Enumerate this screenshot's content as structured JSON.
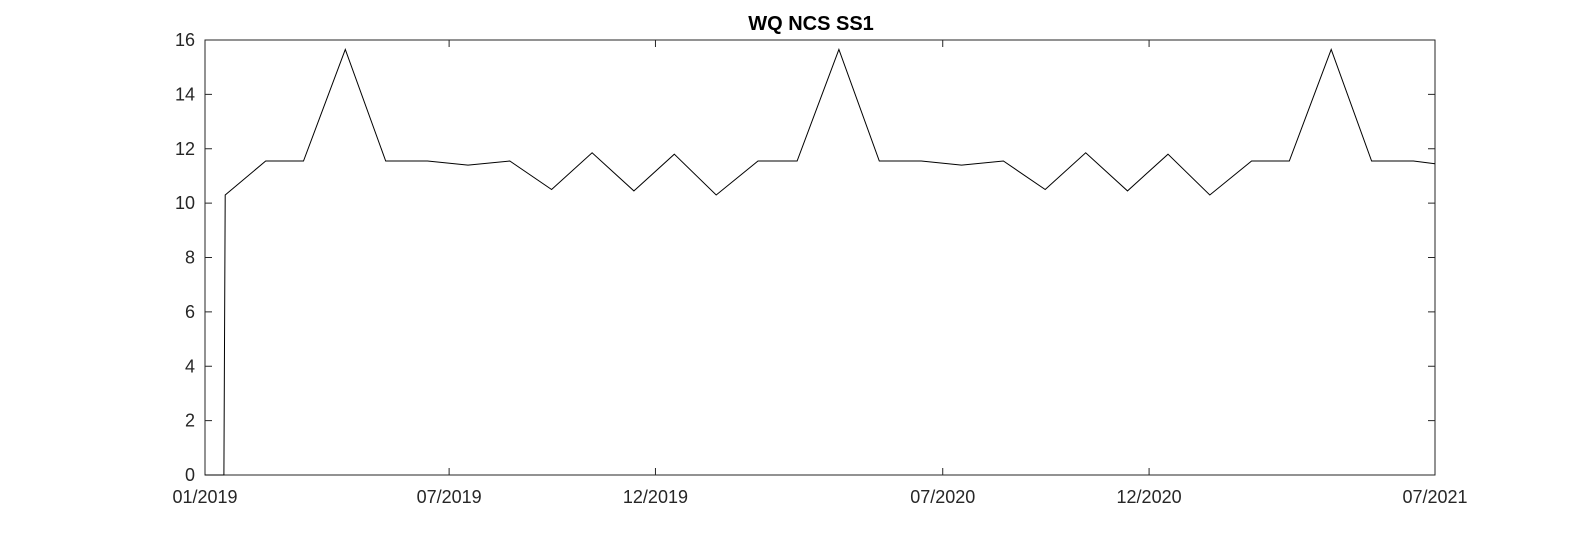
{
  "chart_data": {
    "type": "line",
    "title": "WQ NCS SS1",
    "xlabel": "",
    "ylabel": "",
    "x_ticks": [
      "01/2019",
      "07/2019",
      "12/2019",
      "07/2020",
      "12/2020",
      "07/2021"
    ],
    "y_ticks": [
      "0",
      "2",
      "4",
      "6",
      "8",
      "10",
      "12",
      "14",
      "16"
    ],
    "ylim": [
      0,
      16
    ],
    "xlim": [
      "2019-01-01",
      "2021-07-01"
    ],
    "grid": false,
    "legend": "none",
    "colors": {
      "line": "#000000",
      "axes": "#262626",
      "background": "#ffffff"
    },
    "series": [
      {
        "x": [
          "2019-01-01",
          "2019-01-15",
          "2019-01-16",
          "2019-02-15",
          "2019-03-15",
          "2019-04-15",
          "2019-05-15",
          "2019-06-15",
          "2019-07-15",
          "2019-08-15",
          "2019-09-15",
          "2019-10-15",
          "2019-11-15",
          "2019-12-15",
          "2020-01-15",
          "2020-02-15",
          "2020-03-15",
          "2020-04-15",
          "2020-05-15",
          "2020-06-15",
          "2020-07-15",
          "2020-08-15",
          "2020-09-15",
          "2020-10-15",
          "2020-11-15",
          "2020-12-15",
          "2021-01-15",
          "2021-02-15",
          "2021-03-15",
          "2021-04-15",
          "2021-05-15",
          "2021-06-15",
          "2021-07-01"
        ],
        "values": [
          0,
          0,
          10.3,
          11.55,
          11.55,
          15.65,
          11.55,
          11.55,
          11.4,
          11.55,
          10.5,
          11.85,
          10.45,
          11.8,
          10.3,
          11.55,
          11.55,
          15.65,
          11.55,
          11.55,
          11.4,
          11.55,
          10.5,
          11.85,
          10.45,
          11.8,
          10.3,
          11.55,
          11.55,
          15.65,
          11.55,
          11.55,
          11.45
        ]
      }
    ]
  }
}
